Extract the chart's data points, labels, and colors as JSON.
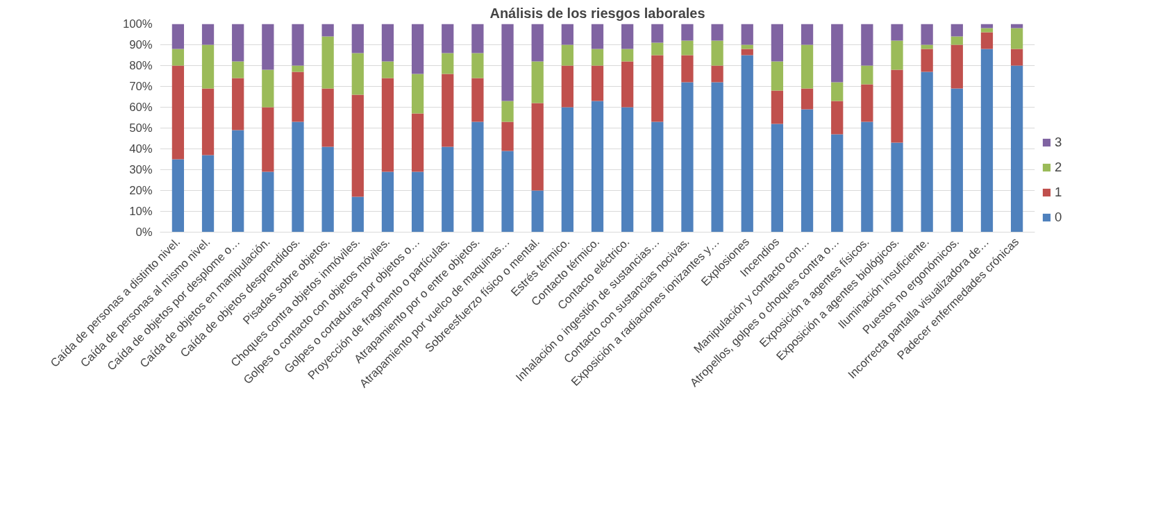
{
  "chart_data": {
    "type": "bar",
    "title": "Análisis de los riesgos laborales",
    "stacked": true,
    "categories": [
      "Caída de personas a distinto nivel.",
      "Caída de personas al mismo nivel.",
      "Caída de objetos por desplome o…",
      "Caída de objetos en manipulación.",
      "Caída de objetos desprendidos.",
      "Pisadas sobre objetos.",
      "Choques contra objetos inmóviles.",
      "Golpes o contacto con objetos móviles.",
      "Golpes o cortaduras por objetos o…",
      "Proyección de fragmento o partículas.",
      "Atrapamiento por o entre objetos.",
      "Atrapamiento por vuelco de maquinas…",
      "Sobreesfuerzo físico o mental.",
      "Estrés térmico.",
      "Contacto térmico.",
      "Contacto eléctrico.",
      "Inhalación o ingestión de sustancias…",
      "Contacto con sustancias nocivas.",
      "Exposición a radiaciones ionizantes y…",
      "Explosiones",
      "Incendios",
      "Manipulación y contacto con…",
      "Atropellos, golpes o choques contra o…",
      "Exposición a agentes físicos.",
      "Exposición a agentes biológicos.",
      "Iluminación insuficiente.",
      "Puestos no ergonómicos.",
      "Incorrecta pantalla visualizadora de…",
      "Padecer enfermedades crónicas"
    ],
    "series": [
      {
        "name": "0",
        "color": "#4f81bd",
        "values": [
          35,
          37,
          49,
          29,
          53,
          41,
          17,
          29,
          29,
          41,
          53,
          39,
          20,
          60,
          63,
          60,
          53,
          72,
          72,
          85,
          52,
          59,
          47,
          53,
          43,
          77,
          69,
          88,
          80
        ]
      },
      {
        "name": "1",
        "color": "#c0504d",
        "values": [
          45,
          32,
          25,
          31,
          24,
          28,
          49,
          45,
          28,
          35,
          21,
          14,
          42,
          20,
          17,
          22,
          32,
          13,
          8,
          3,
          16,
          10,
          16,
          18,
          35,
          11,
          21,
          8,
          8
        ]
      },
      {
        "name": "2",
        "color": "#9bbb59",
        "values": [
          8,
          21,
          8,
          18,
          3,
          25,
          20,
          8,
          19,
          10,
          12,
          10,
          20,
          10,
          8,
          6,
          6,
          7,
          12,
          2,
          14,
          21,
          9,
          9,
          14,
          2,
          4,
          2,
          10
        ]
      },
      {
        "name": "3",
        "color": "#8064a2",
        "values": [
          12,
          10,
          18,
          22,
          20,
          6,
          14,
          18,
          24,
          14,
          14,
          37,
          18,
          10,
          12,
          12,
          9,
          8,
          8,
          10,
          18,
          10,
          28,
          20,
          8,
          10,
          6,
          2,
          2
        ]
      }
    ],
    "ylim": [
      0,
      100
    ],
    "yticks": [
      {
        "value": 0,
        "label": "0%"
      },
      {
        "value": 10,
        "label": "10%"
      },
      {
        "value": 20,
        "label": "20%"
      },
      {
        "value": 30,
        "label": "30%"
      },
      {
        "value": 40,
        "label": "40%"
      },
      {
        "value": 50,
        "label": "50%"
      },
      {
        "value": 60,
        "label": "60%"
      },
      {
        "value": 70,
        "label": "70%"
      },
      {
        "value": 80,
        "label": "80%"
      },
      {
        "value": 90,
        "label": "90%"
      },
      {
        "value": 100,
        "label": "100%"
      }
    ],
    "grid": "y",
    "legend": "right"
  }
}
